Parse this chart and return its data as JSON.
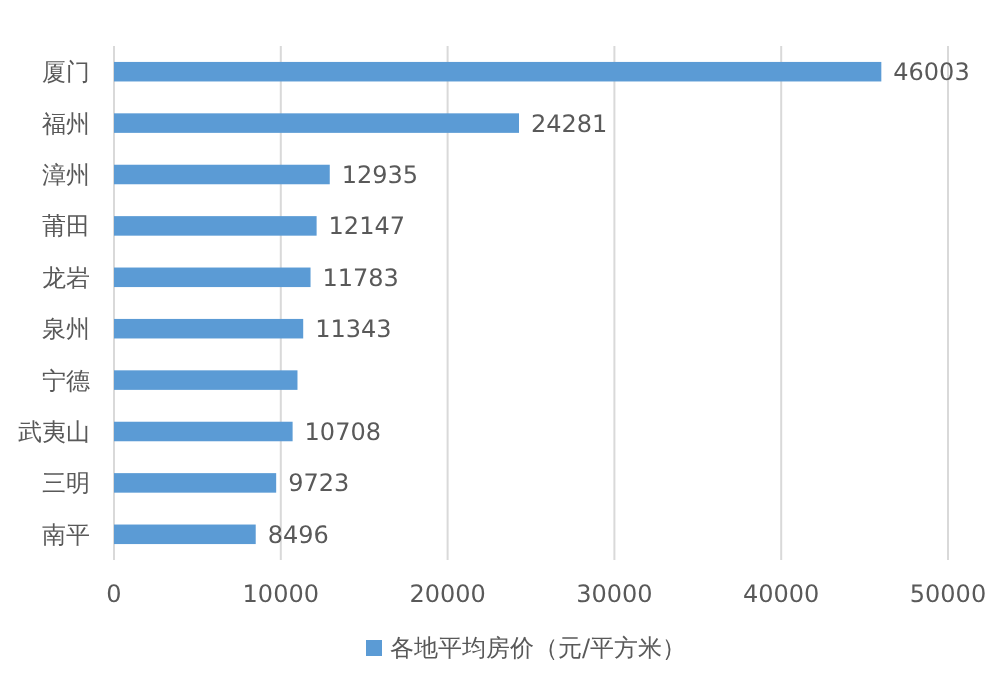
{
  "chart_data": {
    "type": "bar",
    "orientation": "horizontal",
    "categories": [
      "厦门",
      "福州",
      "漳州",
      "莆田",
      "龙岩",
      "泉州",
      "宁德",
      "武夷山",
      "三明",
      "南平"
    ],
    "series": [
      {
        "name": "各地平均房价（元/平方米）",
        "color": "#5b9bd5",
        "values": [
          46003,
          24281,
          12935,
          12147,
          11783,
          11343,
          11000,
          10708,
          9723,
          8496
        ],
        "value_labels": [
          "46003",
          "24281",
          "12935",
          "12147",
          "11783",
          "11343",
          null,
          "10708",
          "9723",
          "8496"
        ]
      }
    ],
    "xlim": [
      0,
      50000
    ],
    "xticks": [
      0,
      10000,
      20000,
      30000,
      40000,
      50000
    ],
    "grid": "x",
    "legend": "bottom"
  }
}
